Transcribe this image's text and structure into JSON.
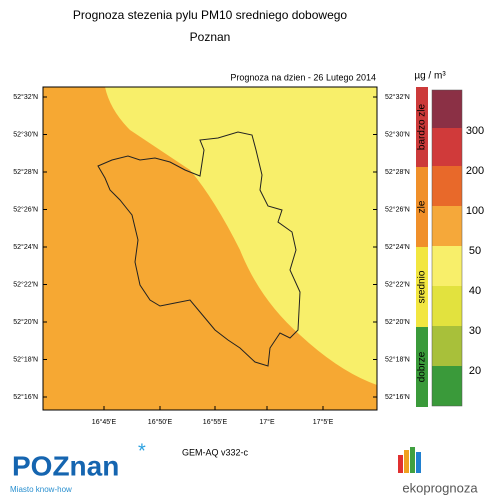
{
  "header": {
    "title": "Prognoza stezenia pylu PM10 sredniego dobowego",
    "subtitle": "Poznan"
  },
  "map": {
    "date": "Prognoza na dzien -  26 Lutego 2014",
    "lat_labels": [
      "52°32'N",
      "52°30'N",
      "52°28'N",
      "52°26'N",
      "52°24'N",
      "52°22'N",
      "52°20'N",
      "52°18'N",
      "52°16'N"
    ],
    "lon_labels": [
      "16°45'E",
      "16°50'E",
      "16°55'E",
      "17°E",
      "17°5'E"
    ],
    "model": "GEM-AQ v332-c"
  },
  "legend": {
    "unit": "µg / m³",
    "categories": [
      "bardzo zle",
      "zle",
      "srednio",
      "dobrze"
    ],
    "levels": [
      "300",
      "200",
      "100",
      "50",
      "40",
      "30",
      "20"
    ]
  },
  "footer": {
    "logo": "POZnan",
    "slogan": "Miasto know-how",
    "brand": "ekoprognoza"
  }
}
